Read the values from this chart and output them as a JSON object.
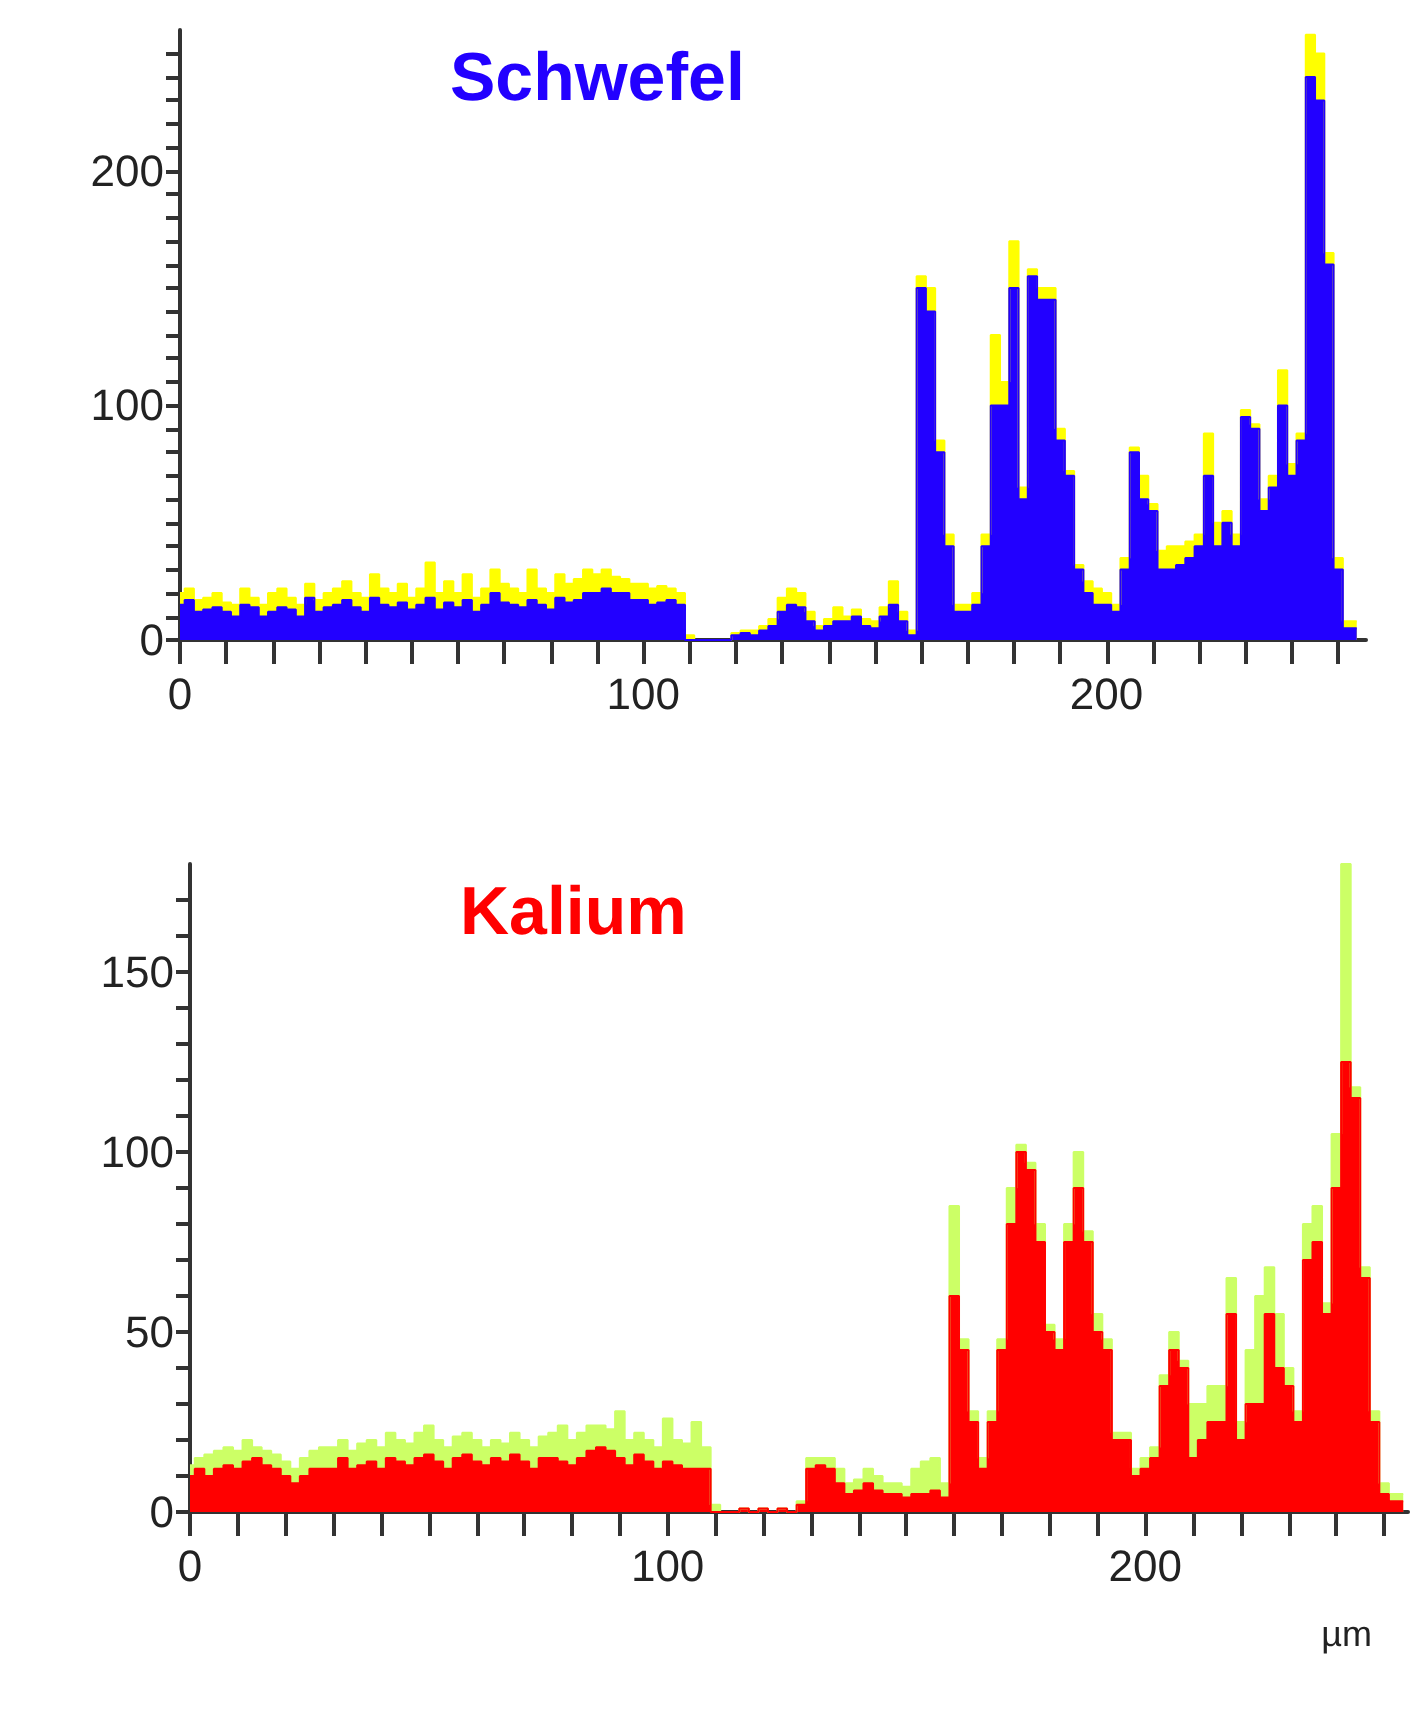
{
  "chart_data": [
    {
      "type": "area",
      "title": "Schwefel",
      "x": [
        0,
        2,
        4,
        6,
        8,
        10,
        12,
        14,
        16,
        18,
        20,
        22,
        24,
        26,
        28,
        30,
        32,
        34,
        36,
        38,
        40,
        42,
        44,
        46,
        48,
        50,
        52,
        54,
        56,
        58,
        60,
        62,
        64,
        66,
        68,
        70,
        72,
        74,
        76,
        78,
        80,
        82,
        84,
        86,
        88,
        90,
        92,
        94,
        96,
        98,
        100,
        102,
        104,
        106,
        108,
        110,
        112,
        114,
        116,
        118,
        120,
        122,
        124,
        126,
        128,
        130,
        132,
        134,
        136,
        138,
        140,
        142,
        144,
        146,
        148,
        150,
        152,
        154,
        156,
        158,
        160,
        162,
        164,
        166,
        168,
        170,
        172,
        174,
        176,
        178,
        180,
        182,
        184,
        186,
        188,
        190,
        192,
        194,
        196,
        198,
        200,
        202,
        204,
        206,
        208,
        210,
        212,
        214,
        216,
        218,
        220,
        222,
        224,
        226,
        228,
        230,
        232,
        234,
        236,
        238,
        240,
        242,
        244,
        246,
        248,
        250,
        252,
        254
      ],
      "xlim": [
        0,
        256
      ],
      "ylim": [
        0,
        260
      ],
      "xticks": [
        0,
        {
          "value": 10,
          "label": null
        },
        {
          "value": 20,
          "label": null
        },
        {
          "value": 30,
          "label": null
        },
        {
          "value": 40,
          "label": null
        },
        {
          "value": 50,
          "label": null
        },
        {
          "value": 60,
          "label": null
        },
        {
          "value": 70,
          "label": null
        },
        {
          "value": 80,
          "label": null
        },
        {
          "value": 90,
          "label": null
        },
        100,
        {
          "value": 110,
          "label": null
        },
        {
          "value": 120,
          "label": null
        },
        {
          "value": 130,
          "label": null
        },
        {
          "value": 140,
          "label": null
        },
        {
          "value": 150,
          "label": null
        },
        {
          "value": 160,
          "label": null
        },
        {
          "value": 170,
          "label": null
        },
        {
          "value": 180,
          "label": null
        },
        {
          "value": 190,
          "label": null
        },
        200,
        {
          "value": 210,
          "label": null
        },
        {
          "value": 220,
          "label": null
        },
        {
          "value": 230,
          "label": null
        },
        {
          "value": 240,
          "label": null
        },
        {
          "value": 250,
          "label": null
        }
      ],
      "yticks": [
        0,
        {
          "value": 10,
          "label": null
        },
        {
          "value": 20,
          "label": null
        },
        {
          "value": 30,
          "label": null
        },
        {
          "value": 40,
          "label": null
        },
        {
          "value": 50,
          "label": null
        },
        {
          "value": 60,
          "label": null
        },
        {
          "value": 70,
          "label": null
        },
        {
          "value": 80,
          "label": null
        },
        {
          "value": 90,
          "label": null
        },
        100,
        {
          "value": 110,
          "label": null
        },
        {
          "value": 120,
          "label": null
        },
        {
          "value": 130,
          "label": null
        },
        {
          "value": 140,
          "label": null
        },
        {
          "value": 150,
          "label": null
        },
        {
          "value": 160,
          "label": null
        },
        {
          "value": 170,
          "label": null
        },
        {
          "value": 180,
          "label": null
        },
        {
          "value": 190,
          "label": null
        },
        200,
        {
          "value": 210,
          "label": null
        },
        {
          "value": 220,
          "label": null
        },
        {
          "value": 230,
          "label": null
        },
        {
          "value": 240,
          "label": null
        },
        {
          "value": 250,
          "label": null
        }
      ],
      "series": [
        {
          "color": "#ffff00",
          "values": [
            20,
            22,
            17,
            18,
            20,
            16,
            15,
            22,
            18,
            15,
            20,
            22,
            18,
            15,
            24,
            17,
            20,
            22,
            25,
            20,
            18,
            28,
            22,
            20,
            24,
            18,
            22,
            33,
            20,
            25,
            20,
            28,
            18,
            22,
            30,
            24,
            22,
            20,
            30,
            22,
            20,
            28,
            24,
            26,
            30,
            28,
            30,
            27,
            26,
            24,
            24,
            22,
            23,
            22,
            20,
            2,
            0,
            0,
            0,
            0,
            3,
            4,
            4,
            6,
            9,
            18,
            22,
            20,
            12,
            6,
            9,
            14,
            10,
            13,
            9,
            8,
            14,
            25,
            12,
            4,
            155,
            150,
            85,
            45,
            15,
            15,
            20,
            45,
            130,
            110,
            170,
            65,
            158,
            150,
            150,
            90,
            72,
            32,
            25,
            22,
            20,
            15,
            35,
            82,
            70,
            58,
            38,
            40,
            40,
            42,
            45,
            88,
            50,
            55,
            45,
            98,
            92,
            60,
            70,
            115,
            75,
            88,
            258,
            250,
            165,
            35,
            8,
            8
          ]
        },
        {
          "color": "#2200ff",
          "values": [
            15,
            17,
            12,
            13,
            14,
            12,
            10,
            15,
            14,
            10,
            12,
            14,
            13,
            10,
            18,
            12,
            14,
            15,
            17,
            14,
            12,
            18,
            15,
            14,
            16,
            13,
            15,
            18,
            13,
            16,
            14,
            17,
            12,
            15,
            20,
            16,
            15,
            14,
            17,
            15,
            13,
            18,
            16,
            17,
            20,
            20,
            22,
            20,
            20,
            17,
            17,
            15,
            16,
            17,
            15,
            0,
            0,
            0,
            0,
            0,
            2,
            3,
            2,
            4,
            6,
            12,
            15,
            14,
            8,
            4,
            6,
            8,
            8,
            10,
            6,
            5,
            10,
            15,
            8,
            2,
            150,
            140,
            80,
            40,
            12,
            12,
            15,
            40,
            100,
            100,
            150,
            60,
            155,
            145,
            145,
            85,
            70,
            30,
            20,
            15,
            15,
            12,
            30,
            80,
            60,
            55,
            30,
            30,
            32,
            35,
            40,
            70,
            40,
            50,
            40,
            95,
            90,
            55,
            65,
            100,
            70,
            85,
            240,
            230,
            160,
            30,
            5,
            5
          ]
        }
      ]
    },
    {
      "type": "area",
      "title": "Kalium",
      "xlabel": "µm",
      "x": [
        0,
        2,
        4,
        6,
        8,
        10,
        12,
        14,
        16,
        18,
        20,
        22,
        24,
        26,
        28,
        30,
        32,
        34,
        36,
        38,
        40,
        42,
        44,
        46,
        48,
        50,
        52,
        54,
        56,
        58,
        60,
        62,
        64,
        66,
        68,
        70,
        72,
        74,
        76,
        78,
        80,
        82,
        84,
        86,
        88,
        90,
        92,
        94,
        96,
        98,
        100,
        102,
        104,
        106,
        108,
        110,
        112,
        114,
        116,
        118,
        120,
        122,
        124,
        126,
        128,
        130,
        132,
        134,
        136,
        138,
        140,
        142,
        144,
        146,
        148,
        150,
        152,
        154,
        156,
        158,
        160,
        162,
        164,
        166,
        168,
        170,
        172,
        174,
        176,
        178,
        180,
        182,
        184,
        186,
        188,
        190,
        192,
        194,
        196,
        198,
        200,
        202,
        204,
        206,
        208,
        210,
        212,
        214,
        216,
        218,
        220,
        222,
        224,
        226,
        228,
        230,
        232,
        234,
        236,
        238,
        240,
        242,
        244,
        246,
        248,
        250,
        252,
        254
      ],
      "xlim": [
        0,
        255
      ],
      "ylim": [
        0,
        180
      ],
      "xticks": [
        0,
        {
          "value": 10,
          "label": null
        },
        {
          "value": 20,
          "label": null
        },
        {
          "value": 30,
          "label": null
        },
        {
          "value": 40,
          "label": null
        },
        {
          "value": 50,
          "label": null
        },
        {
          "value": 60,
          "label": null
        },
        {
          "value": 70,
          "label": null
        },
        {
          "value": 80,
          "label": null
        },
        {
          "value": 90,
          "label": null
        },
        100,
        {
          "value": 110,
          "label": null
        },
        {
          "value": 120,
          "label": null
        },
        {
          "value": 130,
          "label": null
        },
        {
          "value": 140,
          "label": null
        },
        {
          "value": 150,
          "label": null
        },
        {
          "value": 160,
          "label": null
        },
        {
          "value": 170,
          "label": null
        },
        {
          "value": 180,
          "label": null
        },
        {
          "value": 190,
          "label": null
        },
        200,
        {
          "value": 210,
          "label": null
        },
        {
          "value": 220,
          "label": null
        },
        {
          "value": 230,
          "label": null
        },
        {
          "value": 240,
          "label": null
        },
        {
          "value": 250,
          "label": null
        }
      ],
      "yticks": [
        0,
        {
          "value": 10,
          "label": null
        },
        {
          "value": 20,
          "label": null
        },
        {
          "value": 30,
          "label": null
        },
        {
          "value": 40,
          "label": null
        },
        50,
        {
          "value": 60,
          "label": null
        },
        {
          "value": 70,
          "label": null
        },
        {
          "value": 80,
          "label": null
        },
        {
          "value": 90,
          "label": null
        },
        100,
        {
          "value": 110,
          "label": null
        },
        {
          "value": 120,
          "label": null
        },
        {
          "value": 130,
          "label": null
        },
        {
          "value": 140,
          "label": null
        },
        150,
        {
          "value": 160,
          "label": null
        },
        {
          "value": 170,
          "label": null
        }
      ],
      "series": [
        {
          "color": "#ccff66",
          "values": [
            13,
            15,
            16,
            17,
            18,
            17,
            20,
            18,
            17,
            16,
            14,
            12,
            15,
            17,
            18,
            18,
            20,
            17,
            19,
            20,
            18,
            22,
            20,
            19,
            22,
            24,
            20,
            18,
            21,
            22,
            20,
            18,
            20,
            19,
            22,
            20,
            18,
            21,
            22,
            24,
            20,
            22,
            24,
            24,
            23,
            28,
            20,
            22,
            20,
            18,
            26,
            20,
            19,
            25,
            18,
            2,
            0,
            0,
            1,
            0,
            1,
            0,
            1,
            0,
            3,
            15,
            15,
            15,
            12,
            8,
            9,
            12,
            10,
            8,
            8,
            7,
            12,
            14,
            15,
            8,
            85,
            48,
            28,
            15,
            28,
            48,
            90,
            102,
            97,
            80,
            52,
            48,
            80,
            100,
            78,
            55,
            48,
            22,
            22,
            12,
            15,
            18,
            38,
            50,
            42,
            30,
            30,
            35,
            35,
            65,
            25,
            45,
            60,
            68,
            55,
            40,
            28,
            80,
            85,
            58,
            105,
            180,
            118,
            68,
            28,
            8,
            5,
            5
          ]
        },
        {
          "color": "#ff0000",
          "values": [
            10,
            12,
            10,
            12,
            13,
            12,
            14,
            15,
            13,
            12,
            10,
            8,
            10,
            12,
            12,
            12,
            15,
            12,
            13,
            14,
            12,
            15,
            14,
            13,
            15,
            16,
            14,
            12,
            15,
            16,
            14,
            13,
            15,
            14,
            16,
            14,
            12,
            15,
            15,
            14,
            13,
            15,
            17,
            18,
            17,
            15,
            13,
            16,
            14,
            12,
            14,
            13,
            12,
            12,
            12,
            0,
            0,
            0,
            1,
            0,
            1,
            0,
            1,
            0,
            2,
            12,
            13,
            12,
            8,
            5,
            6,
            8,
            6,
            5,
            5,
            4,
            5,
            5,
            6,
            4,
            60,
            45,
            25,
            12,
            25,
            45,
            80,
            100,
            95,
            75,
            50,
            45,
            75,
            90,
            75,
            50,
            45,
            20,
            20,
            10,
            12,
            15,
            35,
            45,
            40,
            15,
            20,
            25,
            25,
            55,
            20,
            30,
            30,
            55,
            40,
            35,
            25,
            70,
            75,
            55,
            90,
            125,
            115,
            65,
            25,
            5,
            3,
            3
          ]
        }
      ]
    }
  ]
}
